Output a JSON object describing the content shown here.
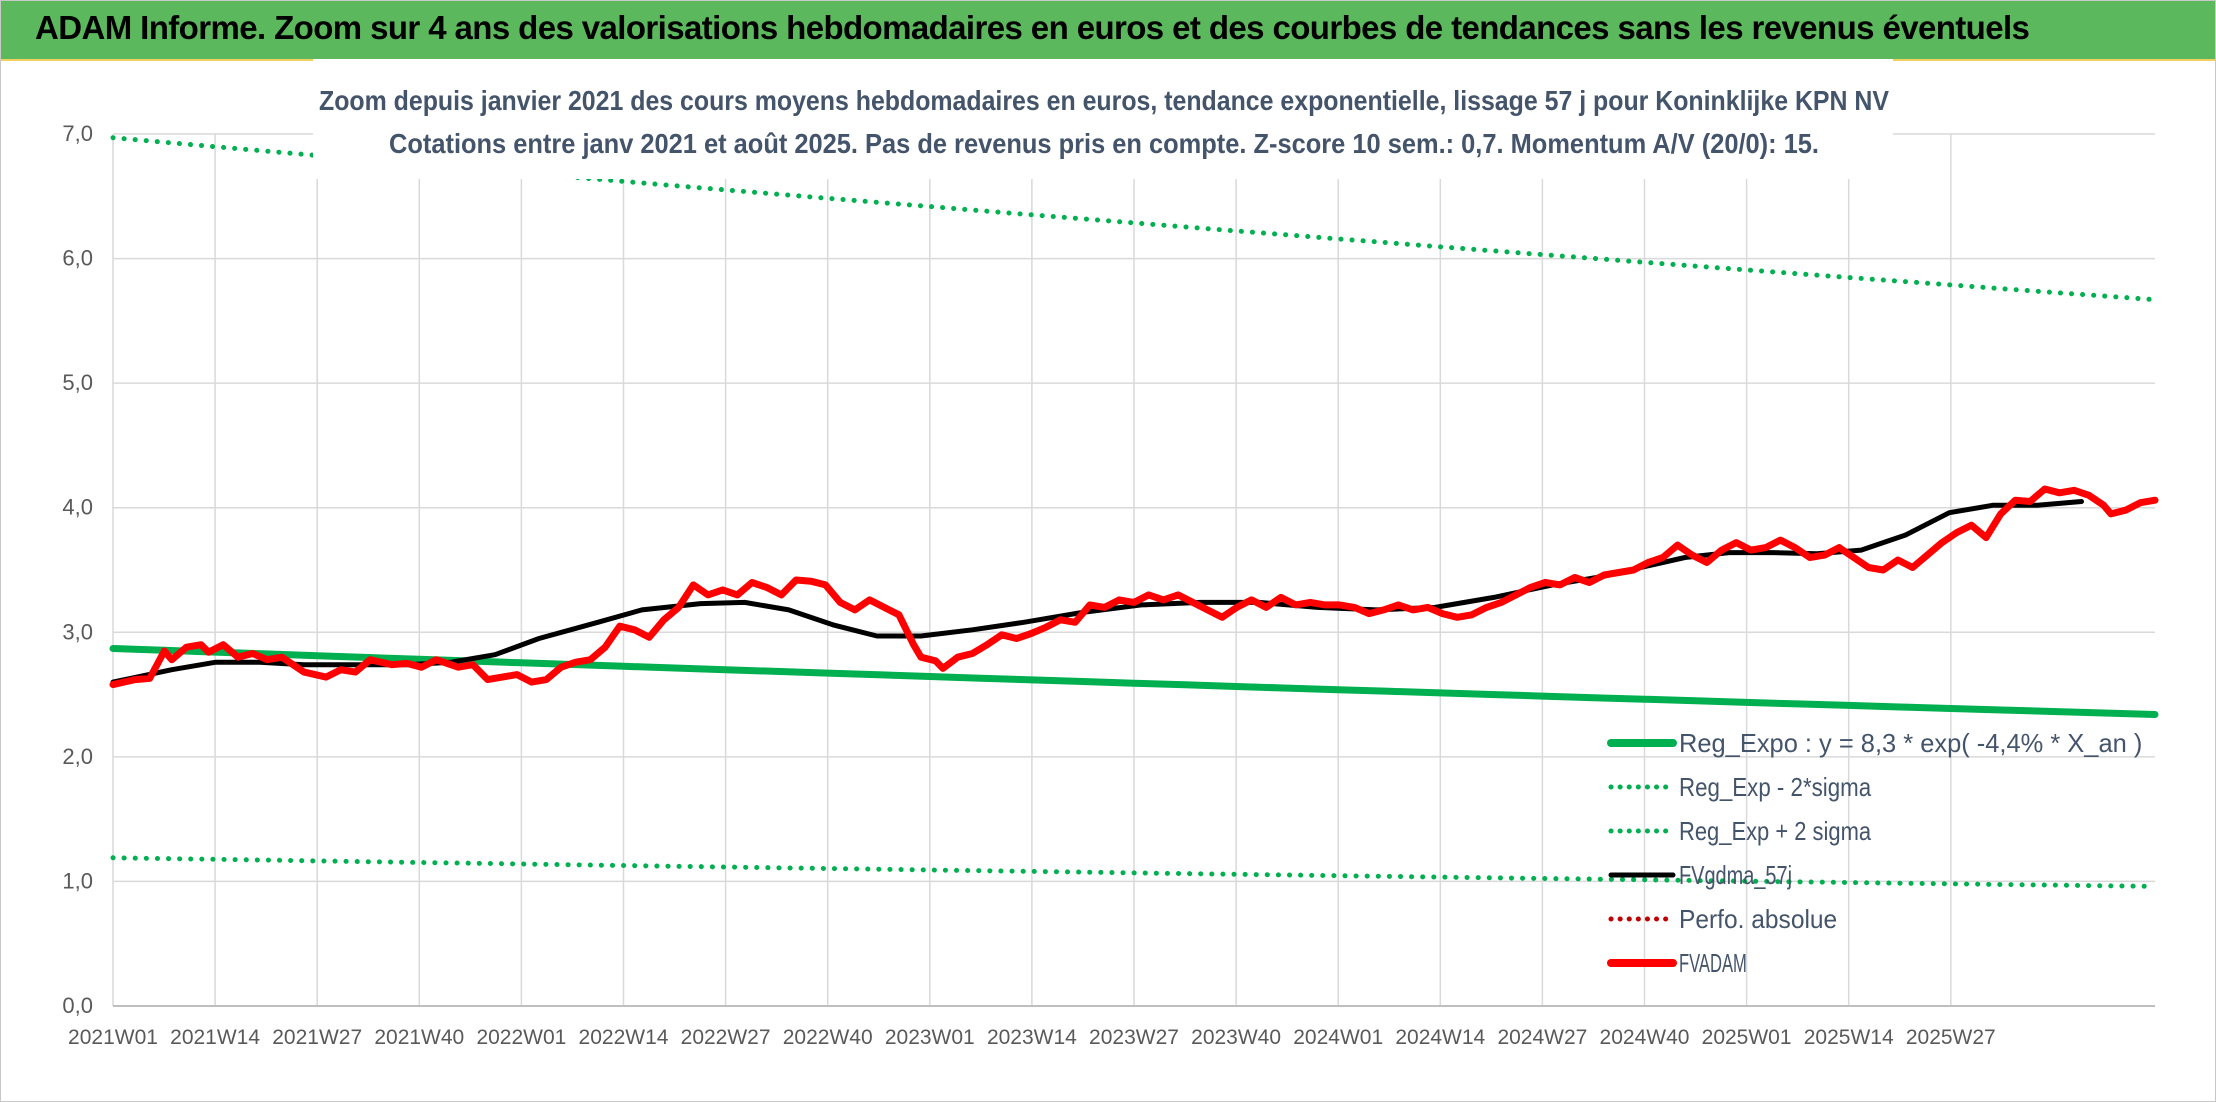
{
  "banner": {
    "title": "ADAM Informe. Zoom sur 4 ans des valorisations hebdomadaires en euros et des courbes de tendances sans les revenus éventuels"
  },
  "colors": {
    "banner": "#5cb85c",
    "reg_expo": "#00b050",
    "reg_bands": "#00b050",
    "smoothed": "#000000",
    "fvadam": "#ff0000",
    "perfo": "#c00000",
    "grid": "#d9d9d9",
    "axis_text": "#595959",
    "title_text": "#44546a"
  },
  "chart_data": {
    "type": "line",
    "title": "Zoom depuis janvier 2021 des cours moyens hebdomadaires en euros, tendance exponentielle, lissage 57 j pour Koninklijke KPN NV",
    "subtitle": "Cotations entre janv 2021 et août 2025. Pas de revenus pris en compte. Z-score 10 sem.: 0,7. Momentum A/V (20/0): 15.",
    "xlabel": "",
    "ylabel": "",
    "ylim": [
      0,
      7
    ],
    "y_ticks": [
      "0,0",
      "1,0",
      "2,0",
      "3,0",
      "4,0",
      "5,0",
      "6,0",
      "7,0"
    ],
    "x_ticks": [
      "2021W01",
      "2021W14",
      "2021W27",
      "2021W40",
      "2022W01",
      "2022W14",
      "2022W27",
      "2022W40",
      "2023W01",
      "2023W14",
      "2023W27",
      "2023W40",
      "2024W01",
      "2024W14",
      "2024W27",
      "2024W40",
      "2025W01",
      "2025W14",
      "2025W27"
    ],
    "x_range_weeks": [
      0,
      241
    ],
    "grid": "vertical and horizontal gridlines",
    "legend_position": "bottom-right",
    "legend": [
      {
        "label": "Reg_Expo : y = 8,3 * exp( -4,4% *  X_an )",
        "style": "solid-thick",
        "color": "#00b050"
      },
      {
        "label": "Reg_Exp - 2*sigma",
        "style": "dotted",
        "color": "#00b050"
      },
      {
        "label": "Reg_Exp + 2 sigma",
        "style": "dotted",
        "color": "#00b050"
      },
      {
        "label": "FVgdma_57j",
        "style": "solid",
        "color": "#000000"
      },
      {
        "label": "Perfo. absolue",
        "style": "dotted",
        "color": "#c00000"
      },
      {
        "label": "FVADAM",
        "style": "solid-thick",
        "color": "#ff0000"
      }
    ],
    "series": [
      {
        "name": "Reg_Expo : y = 8,3 * exp( -4,4% *  X_an )",
        "points": [
          [
            0,
            2.87
          ],
          [
            241,
            2.34
          ]
        ]
      },
      {
        "name": "Reg_Exp - 2*sigma",
        "points": [
          [
            0,
            1.19
          ],
          [
            241,
            0.96
          ]
        ]
      },
      {
        "name": "Reg_Exp + 2 sigma",
        "points": [
          [
            0,
            6.97
          ],
          [
            241,
            5.67
          ]
        ]
      },
      {
        "name": "FVgdma_57j",
        "points": [
          [
            0,
            2.6
          ],
          [
            8,
            2.7
          ],
          [
            14,
            2.76
          ],
          [
            20,
            2.76
          ],
          [
            26,
            2.74
          ],
          [
            32,
            2.74
          ],
          [
            40,
            2.74
          ],
          [
            46,
            2.76
          ],
          [
            52,
            2.82
          ],
          [
            58,
            2.95
          ],
          [
            66,
            3.08
          ],
          [
            72,
            3.18
          ],
          [
            80,
            3.23
          ],
          [
            86,
            3.24
          ],
          [
            92,
            3.18
          ],
          [
            98,
            3.06
          ],
          [
            104,
            2.97
          ],
          [
            110,
            2.97
          ],
          [
            117,
            3.02
          ],
          [
            124,
            3.08
          ],
          [
            132,
            3.16
          ],
          [
            140,
            3.22
          ],
          [
            148,
            3.24
          ],
          [
            156,
            3.24
          ],
          [
            164,
            3.2
          ],
          [
            172,
            3.18
          ],
          [
            180,
            3.2
          ],
          [
            188,
            3.28
          ],
          [
            196,
            3.38
          ],
          [
            203,
            3.45
          ],
          [
            208,
            3.52
          ],
          [
            214,
            3.6
          ],
          [
            220,
            3.64
          ],
          [
            226,
            3.64
          ],
          [
            232,
            3.63
          ],
          [
            238,
            3.66
          ],
          [
            244,
            3.78
          ],
          [
            250,
            3.96
          ],
          [
            256,
            4.02
          ],
          [
            262,
            4.02
          ],
          [
            268,
            4.05
          ]
        ]
      },
      {
        "name": "FVADAM",
        "points": [
          [
            0,
            2.58
          ],
          [
            3,
            2.62
          ],
          [
            5,
            2.63
          ],
          [
            7,
            2.85
          ],
          [
            8,
            2.78
          ],
          [
            10,
            2.88
          ],
          [
            12,
            2.9
          ],
          [
            13,
            2.84
          ],
          [
            15,
            2.9
          ],
          [
            17,
            2.8
          ],
          [
            19,
            2.83
          ],
          [
            21,
            2.78
          ],
          [
            23,
            2.8
          ],
          [
            26,
            2.68
          ],
          [
            29,
            2.64
          ],
          [
            31,
            2.7
          ],
          [
            33,
            2.68
          ],
          [
            35,
            2.78
          ],
          [
            38,
            2.74
          ],
          [
            40,
            2.75
          ],
          [
            42,
            2.72
          ],
          [
            44,
            2.78
          ],
          [
            47,
            2.72
          ],
          [
            49,
            2.74
          ],
          [
            51,
            2.62
          ],
          [
            53,
            2.64
          ],
          [
            55,
            2.66
          ],
          [
            57,
            2.6
          ],
          [
            59,
            2.62
          ],
          [
            61,
            2.72
          ],
          [
            63,
            2.76
          ],
          [
            65,
            2.78
          ],
          [
            67,
            2.88
          ],
          [
            69,
            3.05
          ],
          [
            71,
            3.02
          ],
          [
            73,
            2.96
          ],
          [
            75,
            3.1
          ],
          [
            77,
            3.2
          ],
          [
            79,
            3.38
          ],
          [
            81,
            3.3
          ],
          [
            83,
            3.34
          ],
          [
            85,
            3.3
          ],
          [
            87,
            3.4
          ],
          [
            89,
            3.36
          ],
          [
            91,
            3.3
          ],
          [
            93,
            3.42
          ],
          [
            95,
            3.41
          ],
          [
            97,
            3.38
          ],
          [
            99,
            3.24
          ],
          [
            101,
            3.18
          ],
          [
            103,
            3.26
          ],
          [
            105,
            3.2
          ],
          [
            107,
            3.14
          ],
          [
            109,
            2.9
          ],
          [
            110,
            2.8
          ],
          [
            112,
            2.77
          ],
          [
            113,
            2.71
          ],
          [
            115,
            2.8
          ],
          [
            117,
            2.83
          ],
          [
            119,
            2.9
          ],
          [
            121,
            2.98
          ],
          [
            123,
            2.95
          ],
          [
            125,
            2.99
          ],
          [
            127,
            3.04
          ],
          [
            129,
            3.1
          ],
          [
            131,
            3.08
          ],
          [
            133,
            3.22
          ],
          [
            135,
            3.2
          ],
          [
            137,
            3.26
          ],
          [
            139,
            3.24
          ],
          [
            141,
            3.3
          ],
          [
            143,
            3.26
          ],
          [
            145,
            3.3
          ],
          [
            147,
            3.24
          ],
          [
            149,
            3.18
          ],
          [
            151,
            3.12
          ],
          [
            153,
            3.2
          ],
          [
            155,
            3.26
          ],
          [
            157,
            3.2
          ],
          [
            159,
            3.28
          ],
          [
            161,
            3.22
          ],
          [
            163,
            3.24
          ],
          [
            165,
            3.22
          ],
          [
            167,
            3.22
          ],
          [
            169,
            3.2
          ],
          [
            171,
            3.15
          ],
          [
            173,
            3.18
          ],
          [
            175,
            3.22
          ],
          [
            177,
            3.18
          ],
          [
            179,
            3.2
          ],
          [
            181,
            3.15
          ],
          [
            183,
            3.12
          ],
          [
            185,
            3.14
          ],
          [
            187,
            3.2
          ],
          [
            189,
            3.24
          ],
          [
            191,
            3.3
          ],
          [
            193,
            3.36
          ],
          [
            195,
            3.4
          ],
          [
            197,
            3.38
          ],
          [
            199,
            3.44
          ],
          [
            201,
            3.4
          ],
          [
            203,
            3.46
          ],
          [
            205,
            3.48
          ],
          [
            207,
            3.5
          ],
          [
            209,
            3.56
          ],
          [
            211,
            3.6
          ],
          [
            213,
            3.7
          ],
          [
            215,
            3.62
          ],
          [
            217,
            3.56
          ],
          [
            219,
            3.66
          ],
          [
            221,
            3.72
          ],
          [
            223,
            3.66
          ],
          [
            225,
            3.68
          ],
          [
            227,
            3.74
          ],
          [
            229,
            3.68
          ],
          [
            231,
            3.6
          ],
          [
            233,
            3.62
          ],
          [
            235,
            3.68
          ],
          [
            237,
            3.6
          ],
          [
            239,
            3.52
          ],
          [
            241,
            3.5
          ],
          [
            243,
            3.58
          ],
          [
            245,
            3.52
          ],
          [
            247,
            3.62
          ],
          [
            249,
            3.72
          ],
          [
            251,
            3.8
          ],
          [
            253,
            3.86
          ],
          [
            255,
            3.76
          ],
          [
            257,
            3.95
          ],
          [
            259,
            4.06
          ],
          [
            261,
            4.05
          ],
          [
            263,
            4.15
          ],
          [
            265,
            4.12
          ],
          [
            267,
            4.14
          ],
          [
            269,
            4.1
          ],
          [
            271,
            4.02
          ],
          [
            272,
            3.95
          ],
          [
            274,
            3.98
          ],
          [
            276,
            4.04
          ],
          [
            278,
            4.06
          ]
        ]
      }
    ]
  }
}
